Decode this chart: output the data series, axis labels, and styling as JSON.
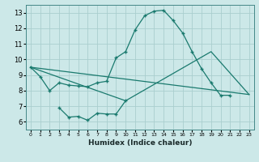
{
  "bg_color": "#cce8e8",
  "line_color": "#1a7a6e",
  "grid_color": "#aacece",
  "xlim": [
    -0.5,
    23.5
  ],
  "ylim": [
    5.5,
    13.5
  ],
  "yticks": [
    6,
    7,
    8,
    9,
    10,
    11,
    12,
    13
  ],
  "xlabel": "Humidex (Indice chaleur)",
  "line1_x": [
    0,
    1,
    2,
    3,
    4,
    5,
    6,
    7,
    8,
    9,
    10,
    11,
    12,
    13,
    14,
    15,
    16,
    17,
    18,
    19,
    20,
    21
  ],
  "line1_y": [
    9.5,
    8.9,
    8.0,
    8.5,
    8.35,
    8.3,
    8.25,
    8.5,
    8.6,
    10.1,
    10.5,
    11.9,
    12.8,
    13.1,
    13.15,
    12.5,
    11.7,
    10.5,
    9.4,
    8.5,
    7.7,
    7.7
  ],
  "line2_x": [
    0,
    23
  ],
  "line2_y": [
    9.5,
    7.75
  ],
  "line3_x": [
    0,
    10,
    19,
    23
  ],
  "line3_y": [
    9.5,
    7.35,
    10.5,
    7.75
  ],
  "line4_x": [
    3,
    4,
    5,
    6,
    7,
    8,
    9,
    10
  ],
  "line4_y": [
    6.9,
    6.3,
    6.35,
    6.1,
    6.55,
    6.5,
    6.5,
    7.35
  ]
}
